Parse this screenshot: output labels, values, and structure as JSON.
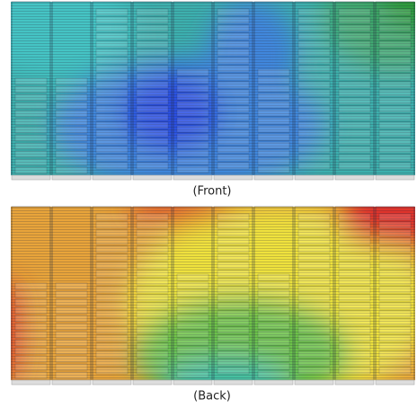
{
  "panels": [
    {
      "caption": "(Front)"
    },
    {
      "caption": "(Back)"
    }
  ]
}
